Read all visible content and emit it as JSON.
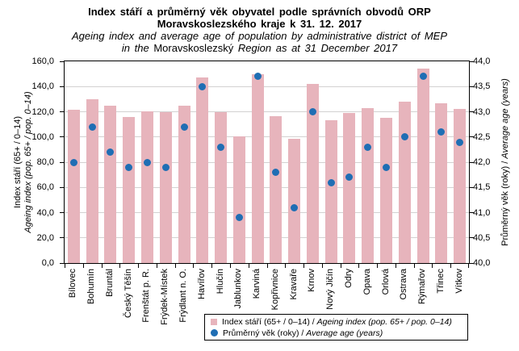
{
  "separator": " / ",
  "title": {
    "line1_cs": "Index stáří a průměrný věk obyvatel podle správních obvodů ORP",
    "line2_cs": "Moravskoslezského kraje k 31. 12. 2017",
    "line3_en": "Ageing index and average age of population by administrative district of MEP",
    "line4_prefix": "in the",
    "line4_region": "Moravskoslezský",
    "line4_suffix": "Region as at 31 December 2017"
  },
  "chart_data": {
    "type": "bar",
    "title": "Index stáří a průměrný věk obyvatel podle správních obvodů ORP Moravskoslezského kraje k 31. 12. 2017 / Ageing index and average age of population by administrative district of MEP in the Moravskoslezský Region as at 31 December 2017",
    "categories": [
      "Bílovec",
      "Bohumín",
      "Bruntál",
      "Český Těšín",
      "Frenštát p. R.",
      "Frýdek-Místek",
      "Frýdlant n. O.",
      "Havířov",
      "Hlučín",
      "Jablunkov",
      "Karviná",
      "Kopřivnice",
      "Kravaře",
      "Krnov",
      "Nový Jičín",
      "Odry",
      "Opava",
      "Orlová",
      "Ostrava",
      "Rýmařov",
      "Třinec",
      "Vítkov"
    ],
    "series": [
      {
        "name": "Index stáří (65+ / 0–14) / Ageing index (pop. 65+ / pop. 0–14)",
        "type": "bar",
        "axis": "left",
        "values": [
          121.5,
          130,
          125,
          116,
          120.5,
          120,
          125,
          147,
          120,
          100.5,
          150,
          116.5,
          98.5,
          142,
          113,
          119,
          123,
          115.5,
          128,
          154,
          127,
          122
        ]
      },
      {
        "name": "Průměrný věk (roky) / Average age (years)",
        "type": "scatter",
        "axis": "right",
        "values": [
          42.0,
          42.7,
          42.2,
          41.9,
          42.0,
          41.9,
          42.7,
          43.5,
          42.3,
          40.9,
          43.7,
          41.8,
          41.1,
          43.0,
          41.6,
          41.7,
          42.3,
          41.9,
          42.5,
          43.7,
          42.6,
          42.4
        ]
      }
    ],
    "left_axis": {
      "label_cs": "Index stáří (65+ / 0–14)",
      "label_en": "Ageing index (pop. 65+ / pop. 0–14)",
      "min": 0,
      "max": 160,
      "step": 20,
      "ticks": [
        "160,0",
        "140,0",
        "120,0",
        "100,0",
        "80,0",
        "60,0",
        "40,0",
        "20,0",
        "0,0"
      ]
    },
    "right_axis": {
      "label_cs": "Průměrný věk (roky)",
      "label_en": "Average age (years)",
      "min": 40.0,
      "max": 44.0,
      "step": 0.5,
      "ticks": [
        "44,0",
        "43,5",
        "43,0",
        "42,5",
        "42,0",
        "41,5",
        "41,0",
        "40,5",
        "40,0"
      ]
    },
    "grid": true,
    "legend_position": "bottom-right",
    "colors": {
      "bar": "#E7B4BC",
      "dot": "#1F6EB4",
      "grid": "#D3D1D1",
      "axis": "#000000"
    }
  },
  "legend": {
    "items": [
      {
        "marker": "square",
        "label_cs": "Index stáří (65+ / 0–14)",
        "label_en": "Ageing index (pop. 65+ / pop. 0–14)"
      },
      {
        "marker": "circle",
        "label_cs": "Průměrný věk (roky)",
        "label_en": "Average age (years)"
      }
    ]
  }
}
